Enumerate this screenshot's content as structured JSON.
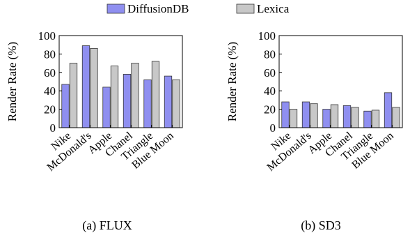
{
  "legend": {
    "placement": "top-center",
    "items": [
      {
        "label": "DiffusionDB",
        "color": "#8f8ff0"
      },
      {
        "label": "Lexica",
        "color": "#c8c8c8"
      }
    ]
  },
  "chart_data": [
    {
      "type": "bar",
      "caption": "(a) FLUX",
      "ylabel": "Render Rate (%)",
      "ylim": [
        0,
        100
      ],
      "yticks": [
        0,
        20,
        40,
        60,
        80,
        100
      ],
      "grid": false,
      "categories": [
        "Nike",
        "McDonald's",
        "Apple",
        "Chanel",
        "Triangle",
        "Blue Moon"
      ],
      "series": [
        {
          "name": "DiffusionDB",
          "values": [
            47,
            89,
            44,
            58,
            52,
            56
          ]
        },
        {
          "name": "Lexica",
          "values": [
            70,
            86,
            67,
            70,
            72,
            52
          ]
        }
      ]
    },
    {
      "type": "bar",
      "caption": "(b) SD3",
      "ylabel": "Render Rate (%)",
      "ylim": [
        0,
        100
      ],
      "yticks": [
        0,
        20,
        40,
        60,
        80,
        100
      ],
      "grid": false,
      "categories": [
        "Nike",
        "McDonald's",
        "Apple",
        "Chanel",
        "Triangle",
        "Blue Moon"
      ],
      "series": [
        {
          "name": "DiffusionDB",
          "values": [
            28,
            28,
            20,
            24,
            18,
            38
          ]
        },
        {
          "name": "Lexica",
          "values": [
            20,
            26,
            25,
            22,
            19,
            22
          ]
        }
      ]
    }
  ]
}
